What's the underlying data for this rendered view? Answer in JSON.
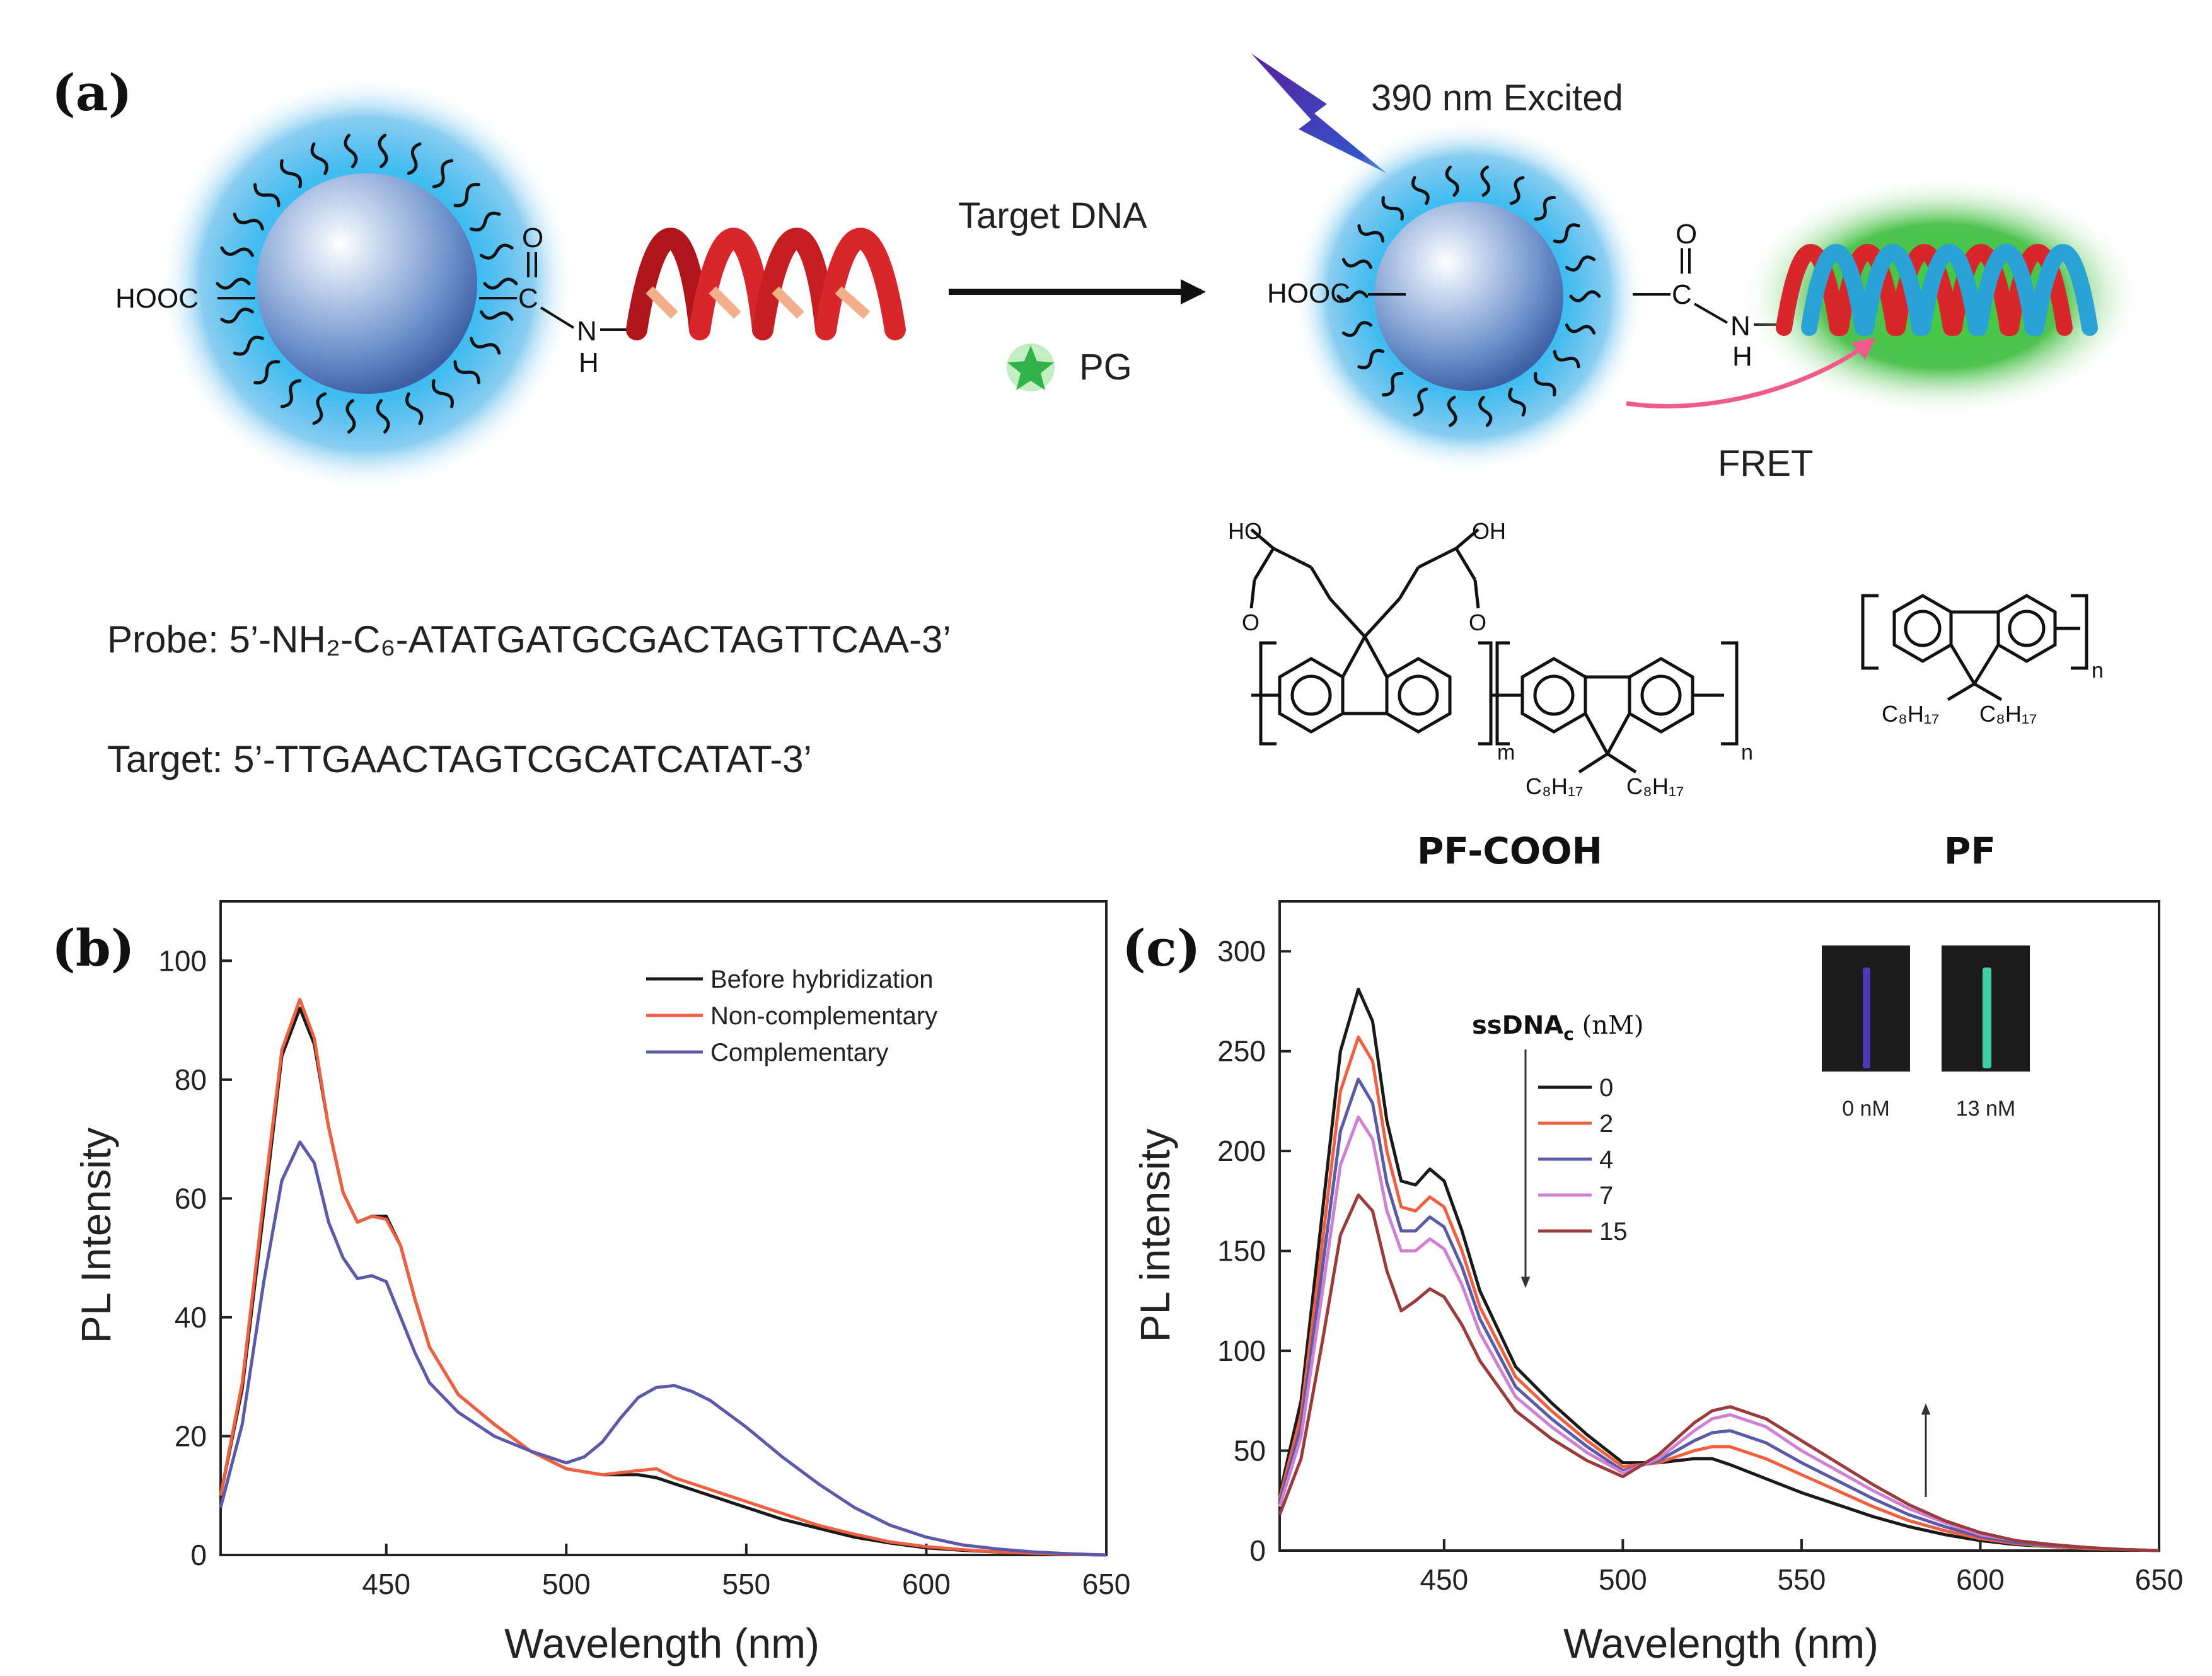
{
  "panel_a": {
    "label": "(a)",
    "cooh_left": "HOOC",
    "cooh_right": "HOOC",
    "carbonyl_o": "O",
    "carbon": "C",
    "amide_n": "N",
    "amide_h": "H",
    "arrow_label": "Target DNA",
    "pg_label": "PG",
    "excited_label": "390 nm Excited",
    "fret_label": "FRET",
    "probe_seq": "Probe: 5’-NH₂-C₆-ATATGATGCGACTAGTTCAA-3’",
    "target_seq": "Target: 5’-TTGAACTAGTCGCATCATAT-3’",
    "struct_ho": "HO",
    "struct_oh": "OH",
    "struct_o": "O",
    "struct_m": "m",
    "struct_n": "n",
    "struct_c8h17": "C₈H₁₇",
    "pf_cooh_name": "PF-COOH",
    "pf_name": "PF",
    "colors": {
      "nanoparticle_glow": "#35b8f0",
      "dna_glow": "#2fb82f",
      "fret_arrow": "#f05a8c",
      "strand_red": "#d9262b",
      "strand_blue": "#2aa2d6"
    }
  },
  "chart_data": [
    {
      "panel_label": "(b)",
      "type": "line",
      "xlabel": "Wavelength (nm)",
      "ylabel": "PL Intensity",
      "xlim": [
        404,
        650
      ],
      "ylim": [
        0,
        110
      ],
      "xticks": [
        450,
        500,
        550,
        600,
        650
      ],
      "yticks": [
        0,
        20,
        40,
        60,
        80,
        100
      ],
      "legend_position": "top-right",
      "series": [
        {
          "name": "Before hybridization",
          "color": "#1a1a1a",
          "x": [
            404,
            410,
            416,
            421,
            426,
            430,
            434,
            438,
            442,
            446,
            450,
            454,
            458,
            462,
            470,
            480,
            490,
            500,
            510,
            520,
            525,
            530,
            540,
            550,
            560,
            570,
            580,
            590,
            600,
            610,
            620,
            630,
            640,
            650
          ],
          "y": [
            10,
            28,
            58,
            84,
            92,
            86,
            72,
            61,
            56,
            57,
            57,
            52,
            43,
            35,
            27,
            22,
            17.5,
            14.5,
            13.5,
            13.5,
            13,
            12,
            10,
            8,
            6,
            4.5,
            3,
            2,
            1.2,
            0.8,
            0.5,
            0.3,
            0.1,
            0
          ]
        },
        {
          "name": "Non-complementary",
          "color": "#f06040",
          "x": [
            404,
            410,
            416,
            421,
            426,
            430,
            434,
            438,
            442,
            446,
            450,
            454,
            458,
            462,
            470,
            480,
            490,
            500,
            510,
            520,
            525,
            530,
            540,
            550,
            560,
            570,
            580,
            590,
            600,
            610,
            620,
            630,
            640,
            650
          ],
          "y": [
            10,
            29,
            60,
            85,
            93.5,
            87,
            72,
            61,
            56,
            57,
            56.5,
            52,
            43,
            35,
            27,
            22,
            17.5,
            14.5,
            13.5,
            14.2,
            14.5,
            13,
            11,
            9,
            7,
            5,
            3.5,
            2.2,
            1.4,
            0.9,
            0.5,
            0.3,
            0.1,
            0
          ]
        },
        {
          "name": "Complementary",
          "color": "#5a5aa8",
          "x": [
            404,
            410,
            416,
            421,
            426,
            430,
            434,
            438,
            442,
            446,
            450,
            454,
            458,
            462,
            470,
            480,
            490,
            500,
            505,
            510,
            515,
            520,
            525,
            530,
            535,
            540,
            550,
            560,
            570,
            580,
            590,
            600,
            610,
            620,
            630,
            640,
            650
          ],
          "y": [
            8,
            22,
            46,
            63,
            69.5,
            66,
            56,
            50,
            46.5,
            47,
            46,
            40,
            34,
            29,
            24,
            20,
            17.5,
            15.5,
            16.5,
            19,
            23,
            26.5,
            28.2,
            28.5,
            27.5,
            26,
            21.5,
            16.5,
            12,
            8,
            5,
            3,
            1.7,
            1,
            0.5,
            0.2,
            0
          ]
        }
      ]
    },
    {
      "panel_label": "(c)",
      "type": "line",
      "xlabel": "Wavelength (nm)",
      "ylabel": "PL intensity",
      "xlim": [
        404,
        650
      ],
      "ylim": [
        0,
        325
      ],
      "xticks": [
        450,
        500,
        550,
        600,
        650
      ],
      "yticks": [
        0,
        50,
        100,
        150,
        200,
        250,
        300
      ],
      "legend_title": "ssDNAc (nM)",
      "legend_position": "top-center",
      "inset_labels": [
        "0 nM",
        "13 nM"
      ],
      "series": [
        {
          "name": "0",
          "color": "#1a1a1a",
          "x": [
            404,
            410,
            416,
            421,
            426,
            430,
            434,
            438,
            442,
            446,
            450,
            455,
            460,
            470,
            480,
            490,
            500,
            510,
            520,
            525,
            530,
            540,
            550,
            560,
            570,
            580,
            590,
            600,
            610,
            620,
            630,
            640,
            650
          ],
          "y": [
            28,
            75,
            170,
            250,
            281,
            265,
            215,
            185,
            183,
            191,
            185,
            160,
            130,
            92,
            74,
            58,
            44,
            44,
            46,
            46,
            43,
            36,
            29,
            23,
            17,
            12,
            8,
            5,
            3,
            2,
            1,
            0.5,
            0
          ]
        },
        {
          "name": "2",
          "color": "#f06040",
          "x": [
            404,
            410,
            416,
            421,
            426,
            430,
            434,
            438,
            442,
            446,
            450,
            455,
            460,
            470,
            480,
            490,
            500,
            510,
            520,
            525,
            530,
            540,
            550,
            560,
            570,
            580,
            590,
            600,
            610,
            620,
            630,
            640,
            650
          ],
          "y": [
            26,
            68,
            155,
            230,
            257,
            245,
            200,
            172,
            170,
            177,
            172,
            150,
            122,
            87,
            70,
            55,
            42,
            44,
            50,
            52,
            52,
            46,
            38,
            30,
            22,
            15,
            10,
            6,
            3.5,
            2,
            1,
            0.5,
            0
          ]
        },
        {
          "name": "4",
          "color": "#5a5aa8",
          "x": [
            404,
            410,
            416,
            421,
            426,
            430,
            434,
            438,
            442,
            446,
            450,
            455,
            460,
            470,
            480,
            490,
            500,
            510,
            520,
            525,
            530,
            540,
            550,
            560,
            570,
            580,
            590,
            600,
            610,
            620,
            630,
            640,
            650
          ],
          "y": [
            24,
            62,
            142,
            210,
            236,
            224,
            184,
            160,
            160,
            167,
            162,
            142,
            116,
            82,
            66,
            52,
            40,
            45,
            55,
            59,
            60,
            54,
            44,
            35,
            26,
            18,
            12,
            7,
            4,
            2.5,
            1.5,
            0.5,
            0
          ]
        },
        {
          "name": "7",
          "color": "#d080d0",
          "x": [
            404,
            410,
            416,
            421,
            426,
            430,
            434,
            438,
            442,
            446,
            450,
            455,
            460,
            470,
            480,
            490,
            500,
            510,
            520,
            525,
            530,
            540,
            550,
            560,
            570,
            580,
            590,
            600,
            610,
            620,
            630,
            640,
            650
          ],
          "y": [
            22,
            57,
            130,
            193,
            217,
            206,
            170,
            150,
            150,
            156,
            151,
            133,
            109,
            77,
            62,
            49,
            39,
            46,
            60,
            66,
            68,
            62,
            50,
            40,
            30,
            21,
            14,
            8,
            5,
            3,
            1.5,
            0.5,
            0
          ]
        },
        {
          "name": "15",
          "color": "#9c3b3b",
          "x": [
            404,
            410,
            416,
            421,
            426,
            430,
            434,
            438,
            442,
            446,
            450,
            455,
            460,
            470,
            480,
            490,
            500,
            510,
            520,
            525,
            530,
            540,
            550,
            560,
            570,
            580,
            590,
            600,
            610,
            620,
            630,
            640,
            650
          ],
          "y": [
            18,
            46,
            105,
            158,
            178,
            170,
            140,
            120,
            125,
            131,
            127,
            113,
            95,
            70,
            56,
            45,
            37,
            48,
            64,
            70,
            72,
            66,
            55,
            44,
            33,
            23,
            15,
            9,
            5,
            3,
            1.5,
            0.5,
            0
          ]
        }
      ]
    }
  ]
}
